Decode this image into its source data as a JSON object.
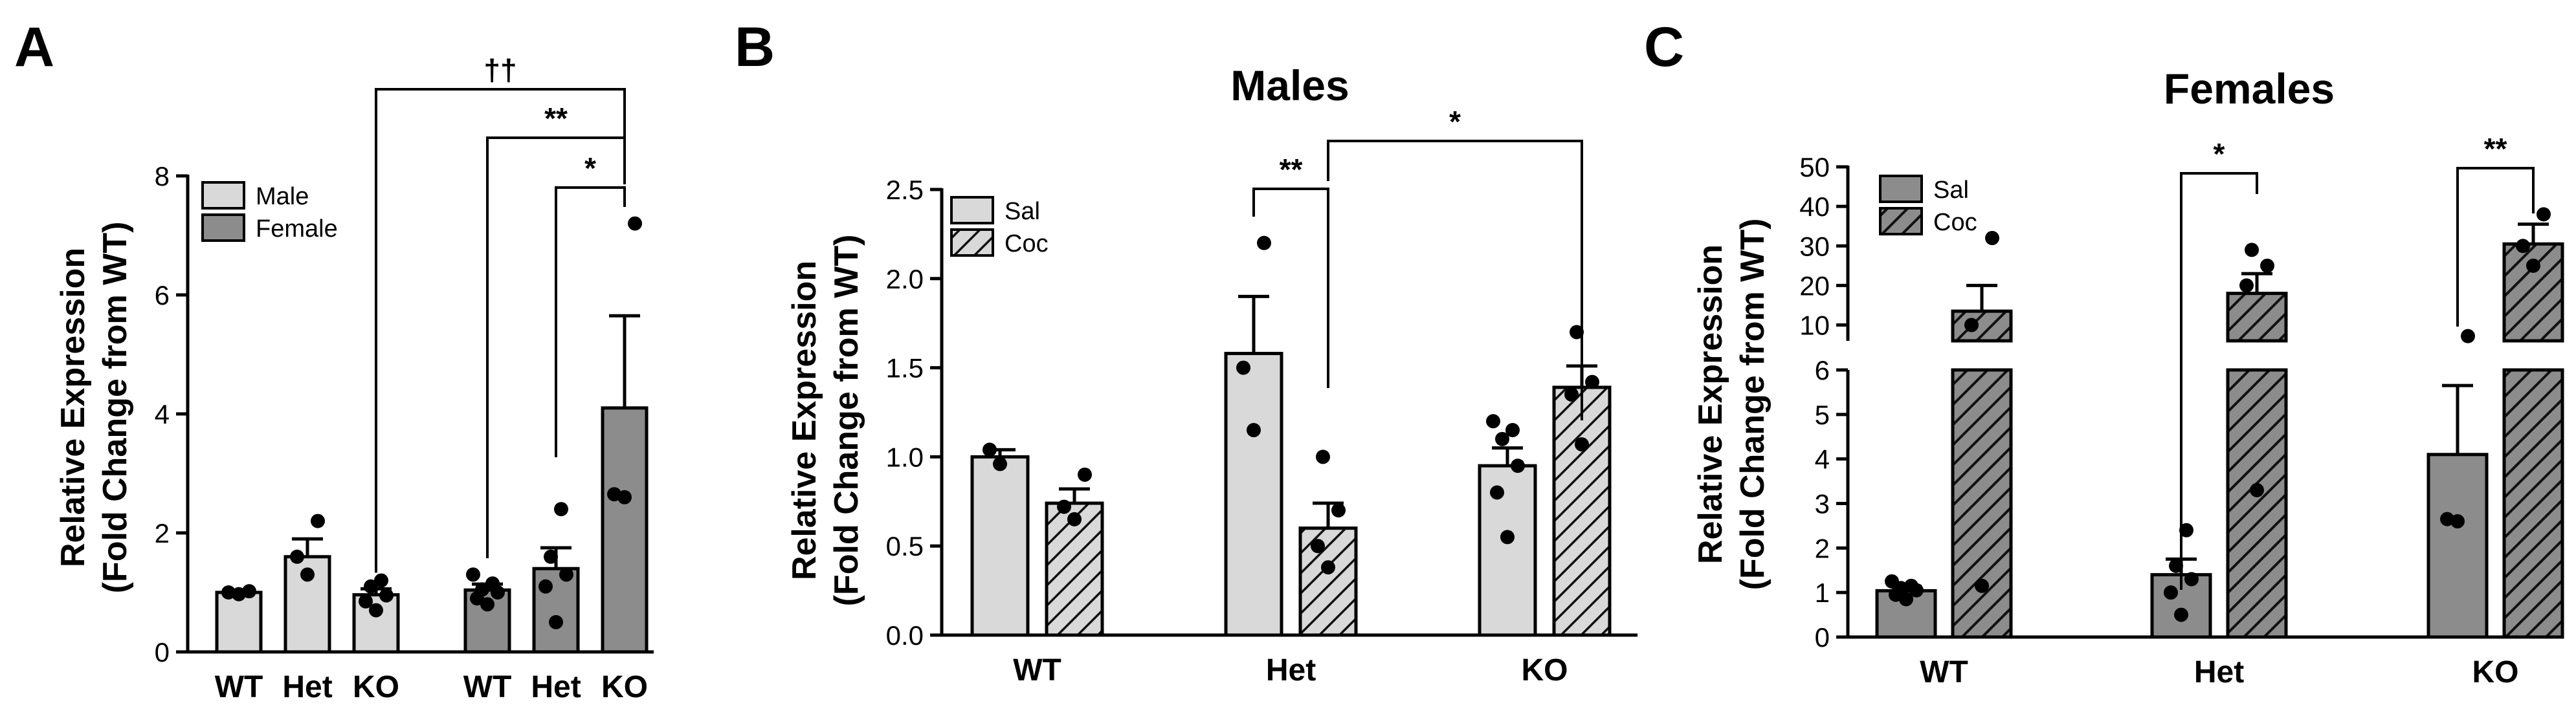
{
  "colors": {
    "male": "#d9d9d9",
    "female": "#8c8c8c",
    "sal_males": "#d9d9d9",
    "sal_females": "#8c8c8c",
    "coc_stripe": "#333333",
    "stroke": "#000000"
  },
  "chart_data": [
    {
      "id": "A",
      "panel_label": "A",
      "type": "bar",
      "title": "",
      "ylabel_line1": "Relative Expression",
      "ylabel_line2": "(Fold Change from WT)",
      "ylim": [
        0,
        8
      ],
      "yticks": [
        0,
        2,
        4,
        6,
        8
      ],
      "legend": [
        {
          "label": "Male",
          "pattern": "male"
        },
        {
          "label": "Female",
          "pattern": "female"
        }
      ],
      "bars": [
        {
          "group": "Male",
          "category": "WT",
          "mean": 1.0,
          "sem": 0.03,
          "points": [
            0.97,
            1.0,
            1.02
          ]
        },
        {
          "group": "Male",
          "category": "Het",
          "mean": 1.6,
          "sem": 0.3,
          "points": [
            1.3,
            1.6,
            2.2
          ]
        },
        {
          "group": "Male",
          "category": "KO",
          "mean": 0.96,
          "sem": 0.1,
          "points": [
            0.7,
            0.85,
            0.95,
            1.1,
            1.2
          ]
        },
        {
          "group": "Female",
          "category": "WT",
          "mean": 1.04,
          "sem": 0.1,
          "points": [
            0.8,
            0.9,
            1.0,
            1.05,
            1.15,
            1.3
          ]
        },
        {
          "group": "Female",
          "category": "Het",
          "mean": 1.4,
          "sem": 0.35,
          "points": [
            0.5,
            1.1,
            1.3,
            1.6,
            2.4
          ]
        },
        {
          "group": "Female",
          "category": "KO",
          "mean": 4.1,
          "sem": 1.55,
          "points": [
            2.6,
            2.65,
            7.2
          ]
        }
      ],
      "significance": [
        {
          "from": 2,
          "to": 5,
          "label": "††"
        },
        {
          "from": 3,
          "to": 5,
          "label": "**"
        },
        {
          "from": 4,
          "to": 5,
          "label": "*"
        }
      ]
    },
    {
      "id": "B",
      "panel_label": "B",
      "type": "bar",
      "title": "Males",
      "ylabel_line1": "Relative Expression",
      "ylabel_line2": "(Fold Change from WT)",
      "ylim": [
        0,
        2.5
      ],
      "yticks": [
        0.0,
        0.5,
        1.0,
        1.5,
        2.0,
        2.5
      ],
      "ytick_labels": [
        "0.0",
        "0.5",
        "1.0",
        "1.5",
        "2.0",
        "2.5"
      ],
      "categories": [
        "WT",
        "Het",
        "KO"
      ],
      "legend": [
        {
          "label": "Sal",
          "pattern": "sal"
        },
        {
          "label": "Coc",
          "pattern": "coc"
        }
      ],
      "bars": [
        {
          "group": "Sal",
          "category": "WT",
          "mean": 1.0,
          "sem": 0.04,
          "points": [
            0.96,
            1.04
          ]
        },
        {
          "group": "Coc",
          "category": "WT",
          "mean": 0.74,
          "sem": 0.08,
          "points": [
            0.65,
            0.72,
            0.9
          ]
        },
        {
          "group": "Sal",
          "category": "Het",
          "mean": 1.58,
          "sem": 0.32,
          "points": [
            1.15,
            1.5,
            2.2
          ]
        },
        {
          "group": "Coc",
          "category": "Het",
          "mean": 0.6,
          "sem": 0.14,
          "points": [
            0.38,
            0.5,
            0.7,
            1.0
          ]
        },
        {
          "group": "Sal",
          "category": "KO",
          "mean": 0.95,
          "sem": 0.1,
          "points": [
            0.55,
            0.8,
            0.95,
            1.1,
            1.15,
            1.2
          ]
        },
        {
          "group": "Coc",
          "category": "KO",
          "mean": 1.39,
          "sem": 0.12,
          "points": [
            1.07,
            1.35,
            1.42,
            1.7
          ]
        }
      ],
      "significance": [
        {
          "from": 2,
          "to": 3,
          "label": "**"
        },
        {
          "from": 3,
          "to": 5,
          "label": "*"
        }
      ]
    },
    {
      "id": "C",
      "panel_label": "C",
      "type": "bar",
      "title": "Females",
      "ylabel_line1": "Relative Expression",
      "ylabel_line2": "(Fold Change from WT)",
      "y_break": true,
      "ylim_lower": [
        0,
        6
      ],
      "ylim_upper": [
        6,
        50
      ],
      "yticks_lower": [
        0,
        1,
        2,
        3,
        4,
        5,
        6
      ],
      "yticks_upper": [
        10,
        20,
        30,
        40,
        50
      ],
      "categories": [
        "WT",
        "Het",
        "KO"
      ],
      "legend": [
        {
          "label": "Sal",
          "pattern": "sal"
        },
        {
          "label": "Coc",
          "pattern": "coc"
        }
      ],
      "bars": [
        {
          "group": "Sal",
          "category": "WT",
          "mean": 1.04,
          "sem": 0.1,
          "points": [
            0.85,
            0.95,
            1.05,
            1.1,
            1.15,
            1.25
          ]
        },
        {
          "group": "Coc",
          "category": "WT",
          "mean": 13.5,
          "sem": 6.5,
          "points": [
            1.15,
            10.0,
            32.0
          ]
        },
        {
          "group": "Sal",
          "category": "Het",
          "mean": 1.4,
          "sem": 0.35,
          "points": [
            0.5,
            1.0,
            1.3,
            1.6,
            2.4
          ]
        },
        {
          "group": "Coc",
          "category": "Het",
          "mean": 18.0,
          "sem": 5.0,
          "points": [
            3.3,
            20.0,
            25.0,
            29.0
          ]
        },
        {
          "group": "Sal",
          "category": "KO",
          "mean": 4.1,
          "sem": 1.55,
          "points": [
            2.6,
            2.65,
            7.2
          ]
        },
        {
          "group": "Coc",
          "category": "KO",
          "mean": 30.5,
          "sem": 5.0,
          "points": [
            25.0,
            30.0,
            38.0
          ]
        }
      ],
      "significance": [
        {
          "from": 2,
          "to": 3,
          "label": "*"
        },
        {
          "from": 4,
          "to": 5,
          "label": "**"
        }
      ]
    }
  ]
}
